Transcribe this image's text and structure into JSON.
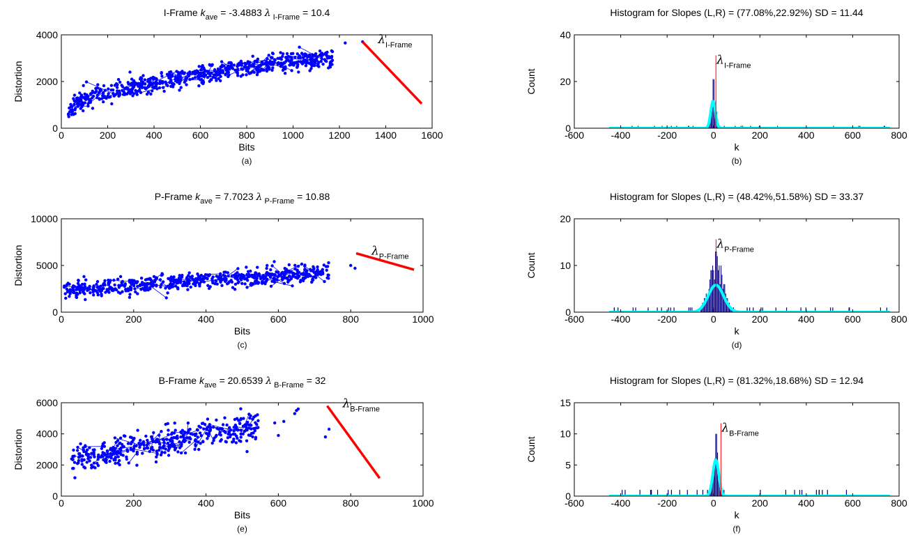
{
  "figure": {
    "panels": [
      {
        "caption": "(a)",
        "title_parts": [
          {
            "t": "I-Frame  "
          },
          {
            "t": "k",
            "i": 1
          },
          {
            "t": "ave",
            "s": 1
          },
          {
            "t": " = -3.4883  "
          },
          {
            "t": "λ",
            "g": 1
          },
          {
            "t": " I-Frame",
            "s": 1
          },
          {
            "t": " = 10.4"
          }
        ],
        "annotation": {
          "symbol": "λ",
          "sub": "I-Frame"
        }
      },
      {
        "caption": "(b)",
        "title_parts": [
          {
            "t": "Histogram for Slopes (L,R) = (77.08%,22.92%) SD = 11.44"
          }
        ],
        "annotation": {
          "symbol": "λ",
          "sub": "I-Frame"
        }
      },
      {
        "caption": "(c)",
        "title_parts": [
          {
            "t": "P-Frame  "
          },
          {
            "t": "k",
            "i": 1
          },
          {
            "t": "ave",
            "s": 1
          },
          {
            "t": " = 7.7023  "
          },
          {
            "t": "λ",
            "g": 1
          },
          {
            "t": " P-Frame",
            "s": 1
          },
          {
            "t": " = 10.88"
          }
        ],
        "annotation": {
          "symbol": "λ",
          "sub": "P-Frame"
        }
      },
      {
        "caption": "(d)",
        "title_parts": [
          {
            "t": "Histogram for Slopes (L,R) = (48.42%,51.58%) SD = 33.37"
          }
        ],
        "annotation": {
          "symbol": "λ",
          "sub": "P-Frame"
        }
      },
      {
        "caption": "(e)",
        "title_parts": [
          {
            "t": "B-Frame  "
          },
          {
            "t": "k",
            "i": 1
          },
          {
            "t": "ave",
            "s": 1
          },
          {
            "t": " = 20.6539  "
          },
          {
            "t": "λ",
            "g": 1
          },
          {
            "t": " B-Frame",
            "s": 1
          },
          {
            "t": " = 32"
          }
        ],
        "annotation": {
          "symbol": "λ",
          "sub": "B-Frame"
        }
      },
      {
        "caption": "(f)",
        "title_parts": [
          {
            "t": "Histogram for Slopes (L,R) = (81.32%,18.68%) SD = 12.94"
          }
        ],
        "annotation": {
          "symbol": "λ",
          "sub": "B-Frame"
        }
      }
    ]
  },
  "colors": {
    "points": "#0000ff",
    "slope_line": "#ff0000",
    "bars": "#00007f",
    "fit": "#00ffff",
    "lambda_line": "#ff0000"
  },
  "chart_data": [
    {
      "type": "scatter",
      "xlabel": "Bits",
      "ylabel": "Distortion",
      "xlim": [
        0,
        1600
      ],
      "ylim": [
        0,
        4000
      ],
      "xticks": [
        0,
        200,
        400,
        600,
        800,
        1000,
        1200,
        1400,
        1600
      ],
      "yticks": [
        0,
        2000,
        4000
      ],
      "points": {
        "n": 700,
        "seed": 11,
        "x_range": [
          30,
          1170
        ],
        "y_start": 700,
        "y_end": 3050,
        "y_curve": 0.55,
        "y_spread": 380,
        "connect_step": 3,
        "extra": [
          [
            1225,
            3650
          ],
          [
            1300,
            3700
          ]
        ]
      },
      "lambda_line": {
        "x": [
          1300,
          1555
        ],
        "y": [
          3700,
          1050
        ]
      },
      "grid": false,
      "legend": "none"
    },
    {
      "type": "histogram",
      "xlabel": "k",
      "ylabel": "Count",
      "xlim": [
        -600,
        800
      ],
      "ylim": [
        0,
        40
      ],
      "xticks": [
        -600,
        -400,
        -200,
        0,
        200,
        400,
        600,
        800
      ],
      "yticks": [
        0,
        20,
        40
      ],
      "bars": {
        "center": -2,
        "peak": 21,
        "sigma": 11,
        "bin": 4,
        "outliers": 22,
        "seed": 5
      },
      "fit": {
        "mean": -2,
        "peak": 11.5,
        "sigma": 10,
        "x_range": [
          -450,
          760
        ]
      },
      "lambda_marker": 10.4,
      "grid": false,
      "legend": "none"
    },
    {
      "type": "scatter",
      "xlabel": "Bits",
      "ylabel": "Distortion",
      "xlim": [
        0,
        1000
      ],
      "ylim": [
        0,
        10000
      ],
      "xticks": [
        0,
        200,
        400,
        600,
        800,
        1000
      ],
      "yticks": [
        0,
        5000,
        10000
      ],
      "points": {
        "n": 620,
        "seed": 23,
        "x_range": [
          5,
          740
        ],
        "y_start": 2400,
        "y_end": 4300,
        "y_curve": 1,
        "y_spread": 800,
        "connect_step": 3,
        "extra": [
          [
            800,
            5000
          ],
          [
            812,
            4700
          ]
        ]
      },
      "lambda_line": {
        "x": [
          815,
          975
        ],
        "y": [
          6300,
          4550
        ]
      },
      "grid": false,
      "legend": "none"
    },
    {
      "type": "histogram",
      "xlabel": "k",
      "ylabel": "Count",
      "xlim": [
        -600,
        800
      ],
      "ylim": [
        0,
        20
      ],
      "xticks": [
        -600,
        -400,
        -200,
        0,
        200,
        400,
        600,
        800
      ],
      "yticks": [
        0,
        10,
        20
      ],
      "bars": {
        "center": 10,
        "peak": 13,
        "sigma": 30,
        "bin": 4,
        "outliers": 32,
        "seed": 9
      },
      "fit": {
        "mean": 10,
        "peak": 5.8,
        "sigma": 33,
        "x_range": [
          -450,
          760
        ]
      },
      "lambda_marker": 10.88,
      "grid": false,
      "legend": "none"
    },
    {
      "type": "scatter",
      "xlabel": "Bits",
      "ylabel": "Distortion",
      "xlim": [
        0,
        1000
      ],
      "ylim": [
        0,
        6000
      ],
      "xticks": [
        0,
        200,
        400,
        600,
        800,
        1000
      ],
      "yticks": [
        0,
        2000,
        4000,
        6000
      ],
      "points": {
        "n": 430,
        "seed": 41,
        "x_range": [
          25,
          545
        ],
        "y_start": 2300,
        "y_end": 4500,
        "y_curve": 1,
        "y_spread": 850,
        "connect_step": 3,
        "extra": [
          [
            590,
            4700
          ],
          [
            600,
            3900
          ],
          [
            615,
            4800
          ],
          [
            645,
            5300
          ],
          [
            650,
            5500
          ],
          [
            655,
            5600
          ],
          [
            730,
            3800
          ],
          [
            740,
            4300
          ]
        ]
      },
      "lambda_line": {
        "x": [
          735,
          880
        ],
        "y": [
          5800,
          1150
        ]
      },
      "grid": false,
      "legend": "none"
    },
    {
      "type": "histogram",
      "xlabel": "k",
      "ylabel": "Count",
      "xlim": [
        -600,
        800
      ],
      "ylim": [
        0,
        15
      ],
      "xticks": [
        -600,
        -400,
        -200,
        0,
        200,
        400,
        600,
        800
      ],
      "yticks": [
        0,
        5,
        10,
        15
      ],
      "bars": {
        "center": 10,
        "peak": 10,
        "sigma": 12,
        "bin": 4,
        "outliers": 26,
        "seed": 17
      },
      "fit": {
        "mean": 10,
        "peak": 5.8,
        "sigma": 13,
        "x_range": [
          -450,
          760
        ]
      },
      "lambda_marker": 32,
      "grid": false,
      "legend": "none"
    }
  ]
}
